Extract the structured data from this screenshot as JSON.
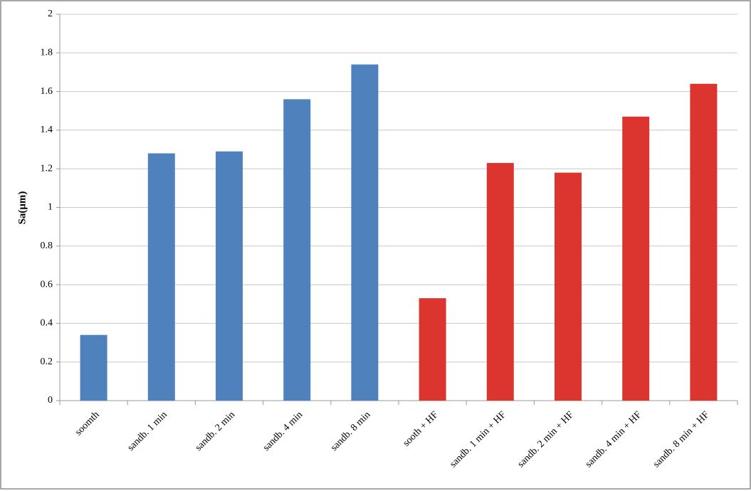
{
  "chart_data": {
    "type": "bar",
    "y_label": "Sa(μm)",
    "categories": [
      "soomth",
      "sandb. 1 min",
      "sandb. 2 min",
      "sandb. 4 min",
      "sandb. 8 min",
      "sooth + HF",
      "sandb. 1 min + HF",
      "sandb. 2 min + HF",
      "sandb. 4 min + HF",
      "sandb. 8 min + HF"
    ],
    "values": [
      0.34,
      1.28,
      1.29,
      1.56,
      1.74,
      0.53,
      1.23,
      1.18,
      1.47,
      1.64
    ],
    "colors": [
      "#4f81bd",
      "#4f81bd",
      "#4f81bd",
      "#4f81bd",
      "#4f81bd",
      "#dc3530",
      "#dc3530",
      "#dc3530",
      "#dc3530",
      "#dc3530"
    ],
    "ylim": [
      0,
      2
    ],
    "yticks": [
      0,
      0.2,
      0.4,
      0.6,
      0.8,
      1,
      1.2,
      1.4,
      1.6,
      1.8,
      2
    ],
    "grid": true
  }
}
